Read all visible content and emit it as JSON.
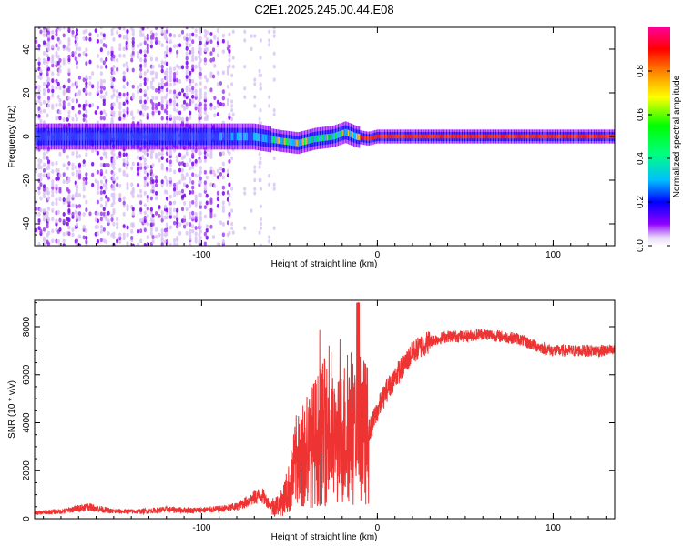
{
  "title": "C2E1.2025.245.00.44.E08",
  "chart_data": [
    {
      "type": "heatmap",
      "xlabel": "Height of straight line (km)",
      "ylabel": "Frequency (Hz)",
      "xlim": [
        -195,
        135
      ],
      "ylim": [
        -50,
        50
      ],
      "xticks": [
        -100,
        0,
        100
      ],
      "xtick_labels": [
        "-100",
        "0",
        "100"
      ],
      "yticks": [
        -40,
        -20,
        0,
        20,
        40
      ],
      "ytick_labels": [
        "-40",
        "-20",
        "0",
        "20",
        "40"
      ],
      "colorbar": {
        "label": "Normalized spectral amplitude",
        "range": [
          0,
          1
        ],
        "ticks": [
          0.0,
          0.2,
          0.4,
          0.6,
          0.8
        ],
        "tick_labels": [
          "0.0",
          "0.2",
          "0.4",
          "0.6",
          "0.8"
        ],
        "colors": [
          "#ffffff",
          "#e0ccf5",
          "#8f00ff",
          "#0000ff",
          "#00ffff",
          "#00ff00",
          "#ffff00",
          "#ff7f00",
          "#ff0000",
          "#ff0099"
        ]
      },
      "band": {
        "center_hz": [
          [
            -185,
            0
          ],
          [
            -120,
            0
          ],
          [
            -70,
            0
          ],
          [
            -55,
            -2
          ],
          [
            -45,
            -3
          ],
          [
            -35,
            -1
          ],
          [
            -25,
            0
          ],
          [
            -18,
            2
          ],
          [
            -12,
            0
          ],
          [
            -5,
            -1
          ],
          [
            0,
            0
          ],
          [
            135,
            0
          ]
        ],
        "noise_region_km": [
          -195,
          -83
        ],
        "sparse_region_km": [
          -83,
          -58
        ]
      }
    },
    {
      "type": "line",
      "xlabel": "Height of straight line (km)",
      "ylabel": "SNR (10 * v/v)",
      "xlim": [
        -195,
        135
      ],
      "ylim": [
        0,
        9100
      ],
      "xticks": [
        -100,
        0,
        100
      ],
      "xtick_labels": [
        "-100",
        "0",
        "100"
      ],
      "yticks": [
        0,
        2000,
        4000,
        6000,
        8000
      ],
      "ytick_labels": [
        "0",
        "2000",
        "4000",
        "6000",
        "8000"
      ],
      "color": "#ee3333",
      "series": [
        {
          "name": "SNR",
          "x": [
            -195,
            -180,
            -165,
            -150,
            -135,
            -120,
            -105,
            -90,
            -80,
            -72,
            -66,
            -60,
            -55,
            -50,
            -46,
            -42,
            -38,
            -34,
            -30,
            -27,
            -24,
            -21,
            -18,
            -15,
            -12,
            -9,
            -6,
            -3,
            0,
            5,
            10,
            15,
            20,
            25,
            30,
            40,
            50,
            60,
            70,
            80,
            90,
            100,
            110,
            120,
            135
          ],
          "y": [
            250,
            300,
            500,
            300,
            300,
            380,
            350,
            400,
            500,
            800,
            1000,
            500,
            600,
            1300,
            2400,
            2300,
            3000,
            3300,
            3600,
            3500,
            3000,
            3300,
            3700,
            3900,
            3200,
            3800,
            3500,
            3900,
            4500,
            5300,
            5900,
            6400,
            6900,
            7200,
            7400,
            7600,
            7600,
            7700,
            7600,
            7500,
            7200,
            7000,
            7000,
            7000,
            7000
          ]
        }
      ]
    }
  ]
}
